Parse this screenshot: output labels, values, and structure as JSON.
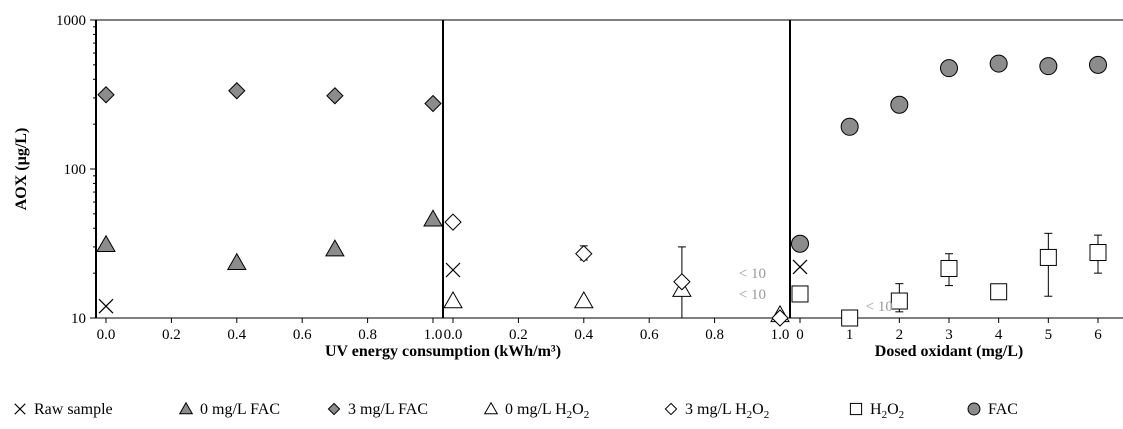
{
  "chart_data": {
    "type": "scatter",
    "ylabel": "AOX (µg/L)",
    "yscale": "log",
    "ylim": [
      10,
      1000
    ],
    "y_ticks": [
      "10",
      "100",
      "1000"
    ],
    "panels": [
      {
        "id": "uv-fac",
        "xlim": [
          0,
          1
        ],
        "x_ticks": [
          "0.0",
          "0.2",
          "0.4",
          "0.6",
          "0.8",
          "1.0"
        ]
      },
      {
        "id": "uv-h2o2",
        "xlim": [
          0,
          1
        ],
        "x_ticks": [
          "0.0",
          "0.2",
          "0.4",
          "0.6",
          "0.8",
          "1.0"
        ]
      },
      {
        "id": "dosed",
        "xlim": [
          0,
          6
        ],
        "x_ticks": [
          "0",
          "1",
          "2",
          "3",
          "4",
          "5",
          "6"
        ]
      }
    ],
    "xlabels": [
      {
        "text": "UV energy consumption (kWh/m³)",
        "panels": [
          "uv-fac",
          "uv-h2o2"
        ]
      },
      {
        "text": "Dosed oxidant (mg/L)",
        "panels": [
          "dosed"
        ]
      }
    ],
    "series": [
      {
        "key": "raw",
        "marker": "x",
        "fill": "none",
        "stroke": "#000000",
        "points": [
          {
            "panel": "uv-fac",
            "x": 0,
            "y": 12
          },
          {
            "panel": "uv-h2o2",
            "x": 0,
            "y": 21
          },
          {
            "panel": "dosed",
            "x": 0,
            "y": 22
          }
        ]
      },
      {
        "key": "fac0",
        "marker": "triangle",
        "fill": "#8c8c8c",
        "stroke": "#000000",
        "points": [
          {
            "panel": "uv-fac",
            "x": 0,
            "y": 31
          },
          {
            "panel": "uv-fac",
            "x": 0.4,
            "y": 23.5
          },
          {
            "panel": "uv-fac",
            "x": 0.7,
            "y": 29
          },
          {
            "panel": "uv-fac",
            "x": 1.0,
            "y": 46
          }
        ]
      },
      {
        "key": "fac3",
        "marker": "diamond",
        "fill": "#8c8c8c",
        "stroke": "#000000",
        "points": [
          {
            "panel": "uv-fac",
            "x": 0,
            "y": 315
          },
          {
            "panel": "uv-fac",
            "x": 0.4,
            "y": 335
          },
          {
            "panel": "uv-fac",
            "x": 0.7,
            "y": 310
          },
          {
            "panel": "uv-fac",
            "x": 1.0,
            "y": 275
          }
        ]
      },
      {
        "key": "h2o2_0",
        "marker": "triangle",
        "fill": "#ffffff",
        "stroke": "#000000",
        "points": [
          {
            "panel": "uv-h2o2",
            "x": 0,
            "y": 13
          },
          {
            "panel": "uv-h2o2",
            "x": 0.4,
            "y": 13
          },
          {
            "panel": "uv-h2o2",
            "x": 0.7,
            "y": 15.5,
            "err": [
              10,
              30
            ]
          },
          {
            "panel": "uv-h2o2",
            "x": 1.0,
            "y": 10.5
          }
        ]
      },
      {
        "key": "h2o2_3",
        "marker": "diamond",
        "fill": "#ffffff",
        "stroke": "#000000",
        "points": [
          {
            "panel": "uv-h2o2",
            "x": 0,
            "y": 44
          },
          {
            "panel": "uv-h2o2",
            "x": 0.4,
            "y": 27,
            "err": [
              24.5,
              30.5
            ]
          },
          {
            "panel": "uv-h2o2",
            "x": 0.7,
            "y": 17.5
          },
          {
            "panel": "uv-h2o2",
            "x": 1.0,
            "y": 10
          }
        ]
      },
      {
        "key": "h2o2_dose",
        "marker": "square",
        "fill": "#ffffff",
        "stroke": "#000000",
        "points": [
          {
            "panel": "dosed",
            "x": 0,
            "y": 14.5
          },
          {
            "panel": "dosed",
            "x": 1,
            "y": 10
          },
          {
            "panel": "dosed",
            "x": 2,
            "y": 13,
            "err": [
              11,
              17
            ]
          },
          {
            "panel": "dosed",
            "x": 3,
            "y": 21.5,
            "err": [
              16.5,
              27
            ]
          },
          {
            "panel": "dosed",
            "x": 4,
            "y": 15
          },
          {
            "panel": "dosed",
            "x": 5,
            "y": 25.5,
            "err": [
              14,
              37
            ]
          },
          {
            "panel": "dosed",
            "x": 6,
            "y": 27.5,
            "err": [
              20,
              36
            ]
          }
        ]
      },
      {
        "key": "fac_dose",
        "marker": "circle",
        "fill": "#8c8c8c",
        "stroke": "#000000",
        "points": [
          {
            "panel": "dosed",
            "x": 0,
            "y": 31.5
          },
          {
            "panel": "dosed",
            "x": 1,
            "y": 192
          },
          {
            "panel": "dosed",
            "x": 2,
            "y": 270
          },
          {
            "panel": "dosed",
            "x": 3,
            "y": 475
          },
          {
            "panel": "dosed",
            "x": 4,
            "y": 510
          },
          {
            "panel": "dosed",
            "x": 5,
            "y": 490
          },
          {
            "panel": "dosed",
            "x": 6,
            "y": 500
          }
        ]
      }
    ],
    "annotations": [
      {
        "text": "< 10",
        "panel": "uv-h2o2",
        "x": 1.0,
        "y": 20
      },
      {
        "text": "< 10",
        "panel": "uv-h2o2",
        "x": 1.0,
        "y": 14.5
      },
      {
        "text": "< 10",
        "panel": "dosed",
        "x": 1,
        "y": 12
      }
    ],
    "legend": {
      "position": "bottom",
      "items": [
        {
          "marker": "x",
          "fill": "none",
          "text": "Raw sample"
        },
        {
          "marker": "triangle",
          "fill": "#8c8c8c",
          "text": "0 mg/L FAC"
        },
        {
          "marker": "diamond",
          "fill": "#8c8c8c",
          "text": "3 mg/L FAC"
        },
        {
          "marker": "triangle",
          "fill": "#ffffff",
          "text": "0 mg/L H",
          "sub1": "2",
          "mid": "O",
          "sub2": "2"
        },
        {
          "marker": "diamond",
          "fill": "#ffffff",
          "text": "3 mg/L H",
          "sub1": "2",
          "mid": "O",
          "sub2": "2"
        },
        {
          "marker": "square",
          "fill": "#ffffff",
          "text": "H",
          "sub1": "2",
          "mid": "O",
          "sub2": "2"
        },
        {
          "marker": "circle",
          "fill": "#8c8c8c",
          "text": "FAC"
        }
      ]
    }
  }
}
